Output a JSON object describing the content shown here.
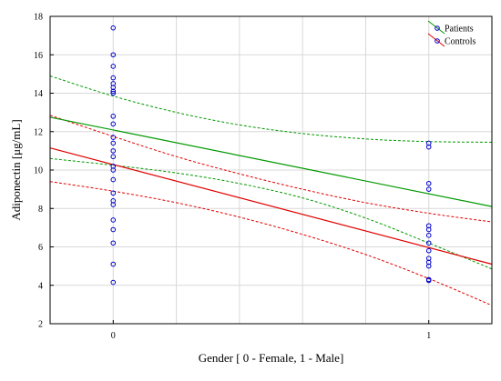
{
  "chart_data": {
    "type": "scatter",
    "title": "",
    "xlabel": "Gender [ 0 - Female, 1 - Male]",
    "ylabel": "Adiponectin [μg/mL]",
    "xlim": [
      -0.2,
      1.2
    ],
    "ylim": [
      2,
      18
    ],
    "x_ticks": [
      0,
      1
    ],
    "y_ticks": [
      2,
      4,
      6,
      8,
      10,
      12,
      14,
      16,
      18
    ],
    "grid": true,
    "legend_position": "top-right",
    "series": [
      {
        "name": "Patients",
        "color": "#009900",
        "points": [
          {
            "x": 0,
            "y": 17.4
          },
          {
            "x": 0,
            "y": 16.0
          },
          {
            "x": 0,
            "y": 15.4
          },
          {
            "x": 0,
            "y": 14.8
          },
          {
            "x": 0,
            "y": 14.5
          },
          {
            "x": 0,
            "y": 14.3
          },
          {
            "x": 0,
            "y": 14.1
          },
          {
            "x": 0,
            "y": 14.0
          },
          {
            "x": 0,
            "y": 12.8
          },
          {
            "x": 0,
            "y": 12.4
          },
          {
            "x": 0,
            "y": 11.7
          },
          {
            "x": 0,
            "y": 11.4
          },
          {
            "x": 0,
            "y": 11.0
          },
          {
            "x": 0,
            "y": 10.7
          },
          {
            "x": 0,
            "y": 10.2
          },
          {
            "x": 1,
            "y": 11.4
          },
          {
            "x": 1,
            "y": 11.2
          },
          {
            "x": 1,
            "y": 9.3
          },
          {
            "x": 1,
            "y": 9.0
          },
          {
            "x": 1,
            "y": 7.1
          },
          {
            "x": 1,
            "y": 6.9
          },
          {
            "x": 1,
            "y": 6.6
          },
          {
            "x": 1,
            "y": 6.2
          }
        ],
        "fit": {
          "x0": -0.2,
          "y0": 12.75,
          "x1": 1.2,
          "y1": 8.1
        },
        "ci_upper": [
          {
            "x": -0.2,
            "y": 14.9
          },
          {
            "x": 0.0,
            "y": 13.85
          },
          {
            "x": 0.2,
            "y": 13.0
          },
          {
            "x": 0.4,
            "y": 12.35
          },
          {
            "x": 0.6,
            "y": 11.9
          },
          {
            "x": 0.8,
            "y": 11.62
          },
          {
            "x": 1.0,
            "y": 11.48
          },
          {
            "x": 1.2,
            "y": 11.45
          }
        ],
        "ci_lower": [
          {
            "x": -0.2,
            "y": 10.6
          },
          {
            "x": 0.0,
            "y": 10.25
          },
          {
            "x": 0.2,
            "y": 9.85
          },
          {
            "x": 0.4,
            "y": 9.3
          },
          {
            "x": 0.6,
            "y": 8.55
          },
          {
            "x": 0.8,
            "y": 7.5
          },
          {
            "x": 1.0,
            "y": 6.2
          },
          {
            "x": 1.2,
            "y": 4.85
          }
        ]
      },
      {
        "name": "Controls",
        "color": "#e00000",
        "points": [
          {
            "x": 0,
            "y": 10.0
          },
          {
            "x": 0,
            "y": 9.5
          },
          {
            "x": 0,
            "y": 8.8
          },
          {
            "x": 0,
            "y": 8.4
          },
          {
            "x": 0,
            "y": 8.2
          },
          {
            "x": 0,
            "y": 7.4
          },
          {
            "x": 0,
            "y": 6.9
          },
          {
            "x": 0,
            "y": 6.2
          },
          {
            "x": 0,
            "y": 5.1
          },
          {
            "x": 0,
            "y": 4.15
          },
          {
            "x": 1,
            "y": 5.8
          },
          {
            "x": 1,
            "y": 5.4
          },
          {
            "x": 1,
            "y": 5.2
          },
          {
            "x": 1,
            "y": 5.0
          },
          {
            "x": 1,
            "y": 4.3
          },
          {
            "x": 1,
            "y": 4.25
          }
        ],
        "fit": {
          "x0": -0.2,
          "y0": 11.15,
          "x1": 1.2,
          "y1": 5.1
        },
        "ci_upper": [
          {
            "x": -0.2,
            "y": 12.85
          },
          {
            "x": 0.0,
            "y": 11.75
          },
          {
            "x": 0.2,
            "y": 10.7
          },
          {
            "x": 0.4,
            "y": 9.8
          },
          {
            "x": 0.6,
            "y": 9.0
          },
          {
            "x": 0.8,
            "y": 8.3
          },
          {
            "x": 1.0,
            "y": 7.75
          },
          {
            "x": 1.2,
            "y": 7.3
          }
        ],
        "ci_lower": [
          {
            "x": -0.2,
            "y": 9.4
          },
          {
            "x": 0.0,
            "y": 8.9
          },
          {
            "x": 0.2,
            "y": 8.3
          },
          {
            "x": 0.4,
            "y": 7.55
          },
          {
            "x": 0.6,
            "y": 6.65
          },
          {
            "x": 0.8,
            "y": 5.6
          },
          {
            "x": 1.0,
            "y": 4.35
          },
          {
            "x": 1.2,
            "y": 2.95
          }
        ]
      }
    ],
    "marker_color": "#0000cc"
  }
}
